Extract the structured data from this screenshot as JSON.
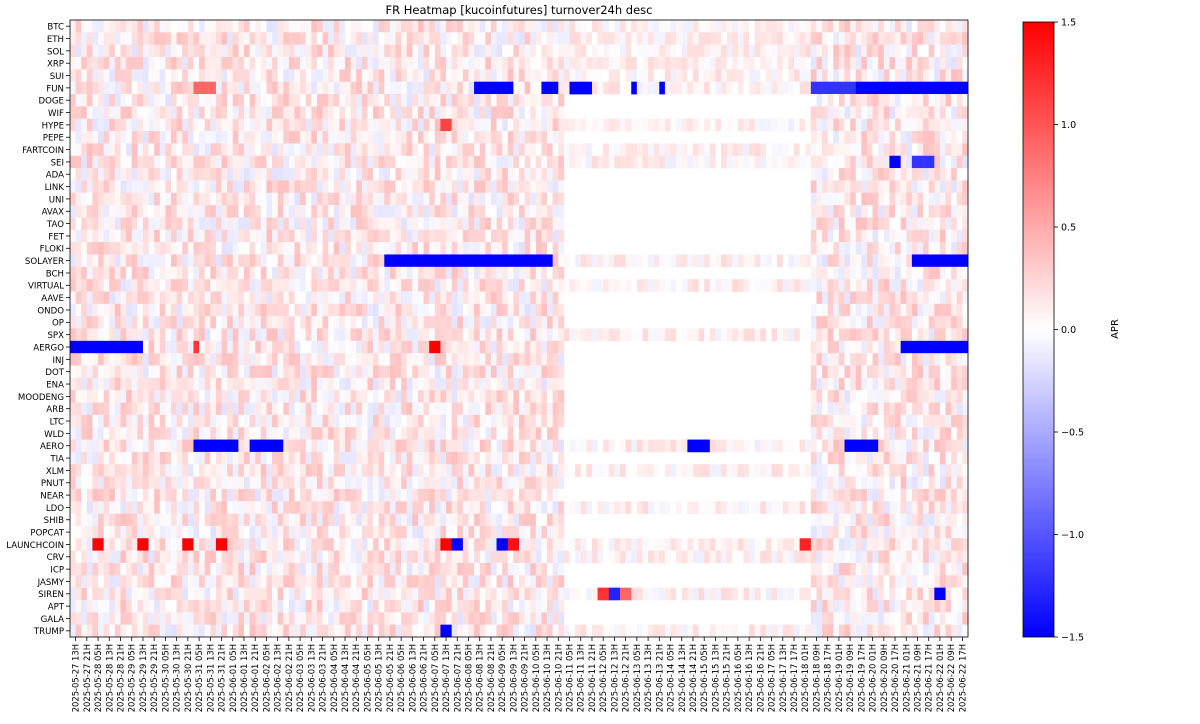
{
  "chart_data": {
    "type": "heatmap",
    "title": "FR Heatmap [kucoinfutures] turnover24h desc",
    "colorbar": {
      "label": "APR",
      "range": [
        -1.5,
        1.5
      ],
      "ticks": [
        -1.5,
        -1.0,
        -0.5,
        0.0,
        0.5,
        1.0,
        1.5
      ],
      "tick_labels": [
        "−1.5",
        "−1.0",
        "−0.5",
        "0.0",
        "0.5",
        "1.0",
        "1.5"
      ],
      "colormap": "bwr",
      "low_color": "#0000ff",
      "mid_color": "#ffffff",
      "high_color": "#ff0000"
    },
    "y_labels": [
      "BTC",
      "ETH",
      "SOL",
      "XRP",
      "SUI",
      "FUN",
      "DOGE",
      "WIF",
      "HYPE",
      "PEPE",
      "FARTCOIN",
      "SEI",
      "ADA",
      "LINK",
      "UNI",
      "AVAX",
      "TAO",
      "FET",
      "FLOKI",
      "SOLAYER",
      "BCH",
      "VIRTUAL",
      "AAVE",
      "ONDO",
      "OP",
      "SPX",
      "AERGO",
      "INJ",
      "DOT",
      "ENA",
      "MOODENG",
      "ARB",
      "LTC",
      "WLD",
      "AERO",
      "TIA",
      "XLM",
      "PNUT",
      "NEAR",
      "LDO",
      "SHIB",
      "POPCAT",
      "LAUNCHCOIN",
      "CRV",
      "ICP",
      "JASMY",
      "SIREN",
      "APT",
      "GALA",
      "TRUMP"
    ],
    "x_labels": [
      "2025-05-27 13H",
      "2025-05-27 21H",
      "2025-05-28 05H",
      "2025-05-28 13H",
      "2025-05-28 21H",
      "2025-05-29 05H",
      "2025-05-29 13H",
      "2025-05-29 21H",
      "2025-05-30 05H",
      "2025-05-30 13H",
      "2025-05-30 21H",
      "2025-05-31 05H",
      "2025-05-31 13H",
      "2025-05-31 21H",
      "2025-06-01 05H",
      "2025-06-01 13H",
      "2025-06-01 21H",
      "2025-06-02 05H",
      "2025-06-02 13H",
      "2025-06-02 21H",
      "2025-06-03 05H",
      "2025-06-03 13H",
      "2025-06-03 21H",
      "2025-06-04 05H",
      "2025-06-04 13H",
      "2025-06-04 21H",
      "2025-06-05 05H",
      "2025-06-05 13H",
      "2025-06-05 21H",
      "2025-06-06 05H",
      "2025-06-06 13H",
      "2025-06-06 21H",
      "2025-06-07 05H",
      "2025-06-07 13H",
      "2025-06-07 21H",
      "2025-06-08 05H",
      "2025-06-08 13H",
      "2025-06-08 21H",
      "2025-06-09 05H",
      "2025-06-09 13H",
      "2025-06-09 21H",
      "2025-06-10 05H",
      "2025-06-10 13H",
      "2025-06-10 21H",
      "2025-06-11 05H",
      "2025-06-11 13H",
      "2025-06-11 21H",
      "2025-06-12 05H",
      "2025-06-12 13H",
      "2025-06-12 21H",
      "2025-06-13 05H",
      "2025-06-13 13H",
      "2025-06-13 21H",
      "2025-06-14 05H",
      "2025-06-14 13H",
      "2025-06-14 21H",
      "2025-06-15 05H",
      "2025-06-15 13H",
      "2025-06-15 21H",
      "2025-06-16 05H",
      "2025-06-16 13H",
      "2025-06-16 21H",
      "2025-06-17 05H",
      "2025-06-17 13H",
      "2025-06-17 17H",
      "2025-06-18 01H",
      "2025-06-18 09H",
      "2025-06-18 17H",
      "2025-06-19 01H",
      "2025-06-19 09H",
      "2025-06-19 17H",
      "2025-06-20 01H",
      "2025-06-20 09H",
      "2025-06-20 17H",
      "2025-06-21 01H",
      "2025-06-21 09H",
      "2025-06-21 17H",
      "2025-06-22 01H",
      "2025-06-22 09H",
      "2025-06-22 17H"
    ],
    "cells_per_label": 2,
    "columns": 160,
    "value_range": [
      -1.5,
      1.5
    ],
    "missing_column_range": [
      88,
      131
    ],
    "missing_rows": [
      "DOGE",
      "WIF",
      "PEPE",
      "ADA",
      "LINK",
      "UNI",
      "AVAX",
      "TAO",
      "FET",
      "FLOKI",
      "BCH",
      "AAVE",
      "ONDO",
      "OP",
      "AERGO",
      "INJ",
      "DOT",
      "ENA",
      "MOODENG",
      "ARB",
      "LTC",
      "WLD",
      "TIA",
      "PNUT",
      "NEAR",
      "SHIB",
      "POPCAT",
      "ICP",
      "JASMY",
      "APT",
      "GALA"
    ],
    "strong_runs": [
      {
        "row": "FUN",
        "from": 72,
        "to": 78,
        "value": -1.5
      },
      {
        "row": "FUN",
        "from": 84,
        "to": 86,
        "value": -1.5
      },
      {
        "row": "FUN",
        "from": 89,
        "to": 92,
        "value": -1.5
      },
      {
        "row": "FUN",
        "from": 100,
        "to": 100,
        "value": -1.5
      },
      {
        "row": "FUN",
        "from": 105,
        "to": 105,
        "value": -1.5
      },
      {
        "row": "FUN",
        "from": 132,
        "to": 139,
        "value": -1.2
      },
      {
        "row": "FUN",
        "from": 140,
        "to": 159,
        "value": -1.5
      },
      {
        "row": "FUN",
        "from": 22,
        "to": 25,
        "value": 0.9
      },
      {
        "row": "SOLAYER",
        "from": 56,
        "to": 85,
        "value": -1.5
      },
      {
        "row": "SOLAYER",
        "from": 150,
        "to": 159,
        "value": -1.5
      },
      {
        "row": "AERGO",
        "from": 0,
        "to": 12,
        "value": -1.5
      },
      {
        "row": "AERGO",
        "from": 148,
        "to": 159,
        "value": -1.5
      },
      {
        "row": "AERGO",
        "from": 64,
        "to": 65,
        "value": 1.5
      },
      {
        "row": "AERGO",
        "from": 22,
        "to": 22,
        "value": 1.2
      },
      {
        "row": "AERO",
        "from": 22,
        "to": 29,
        "value": -1.5
      },
      {
        "row": "AERO",
        "from": 32,
        "to": 37,
        "value": -1.5
      },
      {
        "row": "AERO",
        "from": 110,
        "to": 113,
        "value": -1.5
      },
      {
        "row": "AERO",
        "from": 138,
        "to": 143,
        "value": -1.5
      },
      {
        "row": "LAUNCHCOIN",
        "from": 4,
        "to": 5,
        "value": 1.5
      },
      {
        "row": "LAUNCHCOIN",
        "from": 12,
        "to": 13,
        "value": 1.5
      },
      {
        "row": "LAUNCHCOIN",
        "from": 20,
        "to": 21,
        "value": 1.5
      },
      {
        "row": "LAUNCHCOIN",
        "from": 26,
        "to": 27,
        "value": 1.5
      },
      {
        "row": "LAUNCHCOIN",
        "from": 66,
        "to": 67,
        "value": 1.5
      },
      {
        "row": "LAUNCHCOIN",
        "from": 68,
        "to": 69,
        "value": -1.5
      },
      {
        "row": "LAUNCHCOIN",
        "from": 76,
        "to": 77,
        "value": -1.5
      },
      {
        "row": "LAUNCHCOIN",
        "from": 78,
        "to": 79,
        "value": 1.4
      },
      {
        "row": "LAUNCHCOIN",
        "from": 130,
        "to": 131,
        "value": 1.3
      },
      {
        "row": "SIREN",
        "from": 94,
        "to": 95,
        "value": 1.2
      },
      {
        "row": "SIREN",
        "from": 96,
        "to": 97,
        "value": -1.3
      },
      {
        "row": "SIREN",
        "from": 98,
        "to": 99,
        "value": 0.9
      },
      {
        "row": "SIREN",
        "from": 154,
        "to": 155,
        "value": -1.5
      },
      {
        "row": "HYPE",
        "from": 66,
        "to": 67,
        "value": 1.1
      },
      {
        "row": "SEI",
        "from": 146,
        "to": 147,
        "value": -1.5
      },
      {
        "row": "SEI",
        "from": 150,
        "to": 153,
        "value": -1.2
      },
      {
        "row": "TRUMP",
        "from": 66,
        "to": 67,
        "value": -1.5
      }
    ]
  }
}
